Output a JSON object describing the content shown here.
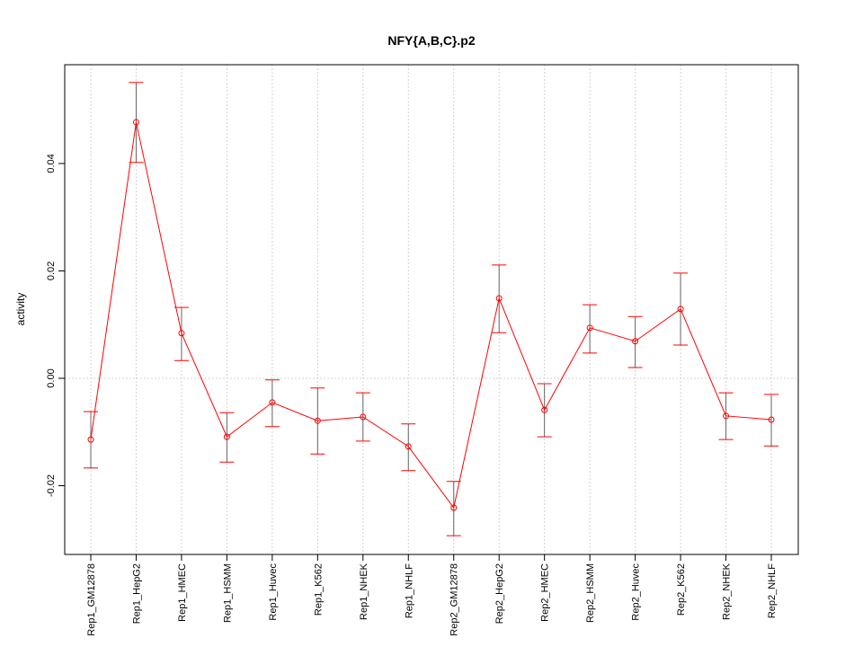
{
  "chart_data": {
    "type": "line",
    "title": "NFY{A,B,C}.p2",
    "xlabel": "",
    "ylabel": "activity",
    "ylim": [
      -0.0328,
      0.0584
    ],
    "yticks": [
      -0.02,
      0.0,
      0.02,
      0.04
    ],
    "ytick_labels": [
      "-0.02",
      "0.00",
      "0.02",
      "0.04"
    ],
    "grid": true,
    "categories": [
      "Rep1_GM12878",
      "Rep1_HepG2",
      "Rep1_HMEC",
      "Rep1_HSMM",
      "Rep1_Huvec",
      "Rep1_K562",
      "Rep1_NHEK",
      "Rep1_NHLF",
      "Rep2_GM12878",
      "Rep2_HepG2",
      "Rep2_HMEC",
      "Rep2_HSMM",
      "Rep2_Huvec",
      "Rep2_K562",
      "Rep2_NHEK",
      "Rep2_NHLF"
    ],
    "series": [
      {
        "name": "activity",
        "color": "#ff0000",
        "values": [
          -0.0114,
          0.0477,
          0.0084,
          -0.0109,
          -0.0045,
          -0.0079,
          -0.0072,
          -0.0127,
          -0.0241,
          0.0149,
          -0.0059,
          0.0094,
          0.0069,
          0.0129,
          -0.007,
          -0.0077
        ],
        "upper": [
          -0.0062,
          0.0551,
          0.0132,
          -0.0064,
          -0.0003,
          -0.0018,
          -0.0027,
          -0.0085,
          -0.0192,
          0.0211,
          -0.001,
          0.0137,
          0.0115,
          0.0196,
          -0.0027,
          -0.003
        ],
        "lower": [
          -0.0167,
          0.0402,
          0.0033,
          -0.0156,
          -0.009,
          -0.0141,
          -0.0117,
          -0.0172,
          -0.0293,
          0.0085,
          -0.0109,
          0.0047,
          0.002,
          0.0062,
          -0.0114,
          -0.0126
        ]
      }
    ]
  }
}
